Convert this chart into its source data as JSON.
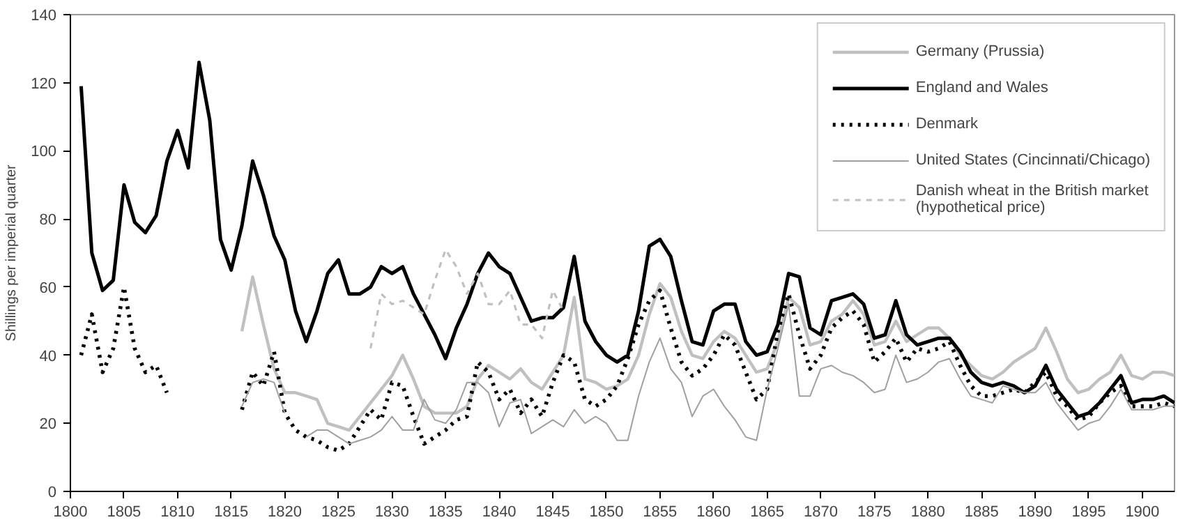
{
  "chart_data": {
    "type": "line",
    "ylabel": "Shillings per imperial quarter",
    "x": [
      1801,
      1802,
      1803,
      1804,
      1805,
      1806,
      1807,
      1808,
      1809,
      1810,
      1811,
      1812,
      1813,
      1814,
      1815,
      1816,
      1817,
      1818,
      1819,
      1820,
      1821,
      1822,
      1823,
      1824,
      1825,
      1826,
      1827,
      1828,
      1829,
      1830,
      1831,
      1832,
      1833,
      1834,
      1835,
      1836,
      1837,
      1838,
      1839,
      1840,
      1841,
      1842,
      1843,
      1844,
      1845,
      1846,
      1847,
      1848,
      1849,
      1850,
      1851,
      1852,
      1853,
      1854,
      1855,
      1856,
      1857,
      1858,
      1859,
      1860,
      1861,
      1862,
      1863,
      1864,
      1865,
      1866,
      1867,
      1868,
      1869,
      1870,
      1871,
      1872,
      1873,
      1874,
      1875,
      1876,
      1877,
      1878,
      1879,
      1880,
      1881,
      1882,
      1883,
      1884,
      1885,
      1886,
      1887,
      1888,
      1889,
      1890,
      1891,
      1892,
      1893,
      1894,
      1895,
      1896,
      1897,
      1898,
      1899,
      1900,
      1901,
      1902,
      1903
    ],
    "series": [
      {
        "name": "Germany (Prussia)",
        "color": "#c0c0c0",
        "line_style": "solid",
        "values": [
          null,
          null,
          null,
          null,
          null,
          null,
          null,
          null,
          null,
          null,
          null,
          null,
          null,
          null,
          null,
          47,
          63,
          49,
          36,
          29,
          29,
          28,
          27,
          20,
          19,
          18,
          22,
          26,
          30,
          34,
          40,
          33,
          25,
          23,
          23,
          23,
          25,
          33,
          37,
          35,
          33,
          36,
          32,
          30,
          35,
          40,
          57,
          33,
          32,
          30,
          31,
          33,
          40,
          52,
          61,
          57,
          47,
          40,
          39,
          44,
          47,
          45,
          40,
          35,
          36,
          44,
          57,
          54,
          43,
          44,
          50,
          52,
          56,
          52,
          43,
          44,
          50,
          44,
          46,
          48,
          48,
          45,
          40,
          37,
          34,
          33,
          35,
          38,
          40,
          42,
          48,
          41,
          33,
          29,
          30,
          33,
          35,
          40,
          34,
          33,
          35,
          35,
          34
        ]
      },
      {
        "name": "England and Wales",
        "color": "#000000",
        "line_style": "solid",
        "values": [
          119,
          70,
          59,
          62,
          90,
          79,
          76,
          81,
          97,
          106,
          95,
          126,
          109,
          74,
          65,
          78,
          97,
          87,
          75,
          68,
          53,
          44,
          53,
          64,
          68,
          58,
          58,
          60,
          66,
          64,
          66,
          58,
          52,
          46,
          39,
          48,
          55,
          64,
          70,
          66,
          64,
          57,
          50,
          51,
          51,
          54,
          69,
          50,
          44,
          40,
          38,
          40,
          53,
          72,
          74,
          69,
          56,
          44,
          43,
          53,
          55,
          55,
          44,
          40,
          41,
          49,
          64,
          63,
          48,
          46,
          56,
          57,
          58,
          55,
          45,
          46,
          56,
          46,
          43,
          44,
          45,
          45,
          41,
          35,
          32,
          31,
          32,
          31,
          29,
          31,
          37,
          30,
          26,
          22,
          23,
          26,
          30,
          34,
          26,
          27,
          27,
          28,
          26
        ]
      },
      {
        "name": "Denmark",
        "color": "#000000",
        "line_style": "dotted",
        "values": [
          40,
          52,
          35,
          42,
          60,
          42,
          35,
          37,
          29,
          null,
          null,
          null,
          null,
          null,
          null,
          24,
          35,
          31,
          41,
          23,
          18,
          16,
          15,
          13,
          12,
          14,
          19,
          24,
          21,
          32,
          31,
          22,
          14,
          16,
          18,
          21,
          22,
          38,
          35,
          27,
          30,
          23,
          27,
          22,
          32,
          40,
          38,
          27,
          25,
          27,
          31,
          39,
          49,
          56,
          59,
          48,
          38,
          34,
          36,
          40,
          46,
          43,
          35,
          27,
          30,
          47,
          58,
          46,
          36,
          40,
          48,
          51,
          53,
          49,
          38,
          41,
          45,
          38,
          42,
          41,
          42,
          44,
          37,
          31,
          28,
          28,
          29,
          30,
          29,
          32,
          35,
          28,
          25,
          21,
          22,
          26,
          29,
          31,
          25,
          25,
          25,
          26,
          25
        ]
      },
      {
        "name": "United States (Cincinnati/Chicago)",
        "color": "#a0a0a0",
        "line_style": "solid",
        "values": [
          null,
          null,
          null,
          null,
          null,
          null,
          null,
          null,
          null,
          null,
          null,
          null,
          null,
          null,
          null,
          25,
          32,
          33,
          32,
          23,
          null,
          16,
          18,
          18,
          16,
          14,
          15,
          16,
          18,
          22,
          18,
          18,
          27,
          21,
          20,
          24,
          32,
          32,
          29,
          19,
          26,
          27,
          17,
          19,
          21,
          19,
          24,
          20,
          22,
          20,
          15,
          15,
          28,
          38,
          45,
          36,
          32,
          22,
          28,
          30,
          25,
          21,
          16,
          15,
          30,
          42,
          55,
          28,
          28,
          36,
          37,
          35,
          34,
          32,
          29,
          30,
          40,
          32,
          33,
          35,
          38,
          39,
          33,
          28,
          27,
          26,
          31,
          30,
          29,
          29,
          32,
          26,
          22,
          18,
          20,
          21,
          25,
          30,
          24,
          24,
          24,
          25,
          25
        ]
      },
      {
        "name": "Danish wheat in the British market\n(hypothetical price)",
        "color": "#c0c0c0",
        "line_style": "dashed",
        "x": [
          1828,
          1829,
          1830,
          1831,
          1832,
          1833,
          1834,
          1835,
          1836,
          1837,
          1838,
          1839,
          1840,
          1841,
          1842,
          1843,
          1844,
          1845,
          1846
        ],
        "values": [
          42,
          58,
          55,
          56,
          54,
          52,
          62,
          71,
          66,
          58,
          64,
          55,
          55,
          59,
          49,
          49,
          45,
          59,
          53
        ]
      }
    ],
    "xlim": [
      1800,
      1903
    ],
    "xticks": [
      1800,
      1805,
      1810,
      1815,
      1820,
      1825,
      1830,
      1835,
      1840,
      1845,
      1850,
      1855,
      1860,
      1865,
      1870,
      1875,
      1880,
      1885,
      1890,
      1895,
      1900
    ],
    "ylim": [
      0,
      140
    ],
    "yticks": [
      0,
      20,
      40,
      60,
      80,
      100,
      120,
      140
    ],
    "grid": false,
    "legend": "top right"
  }
}
